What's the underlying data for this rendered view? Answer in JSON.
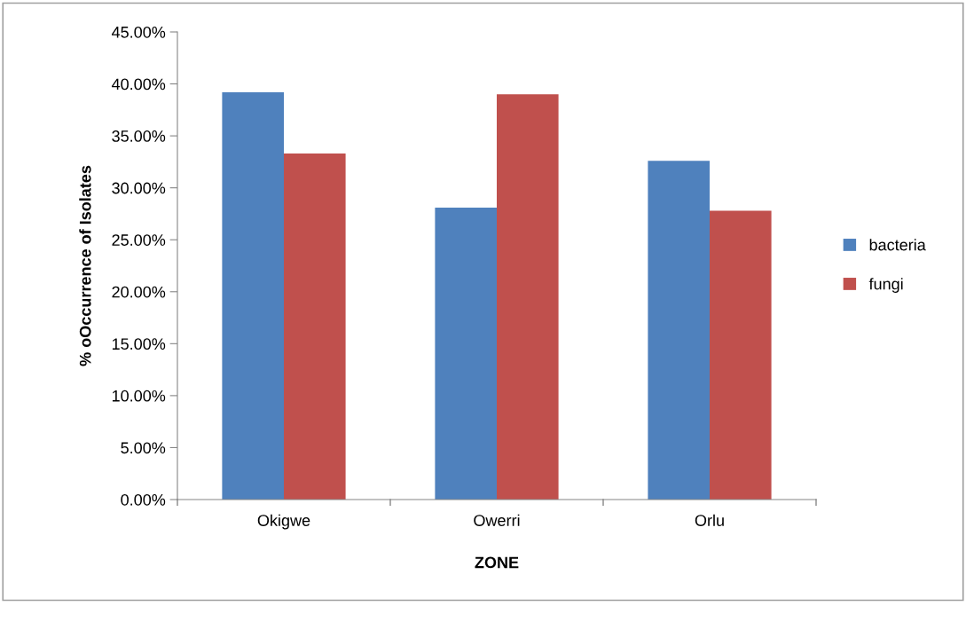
{
  "chart_data": {
    "type": "bar",
    "xlabel": "ZONE",
    "ylabel": "% oOccurrence of Isolates",
    "categories": [
      "Okigwe",
      "Owerri",
      "Orlu"
    ],
    "series": [
      {
        "name": "bacteria",
        "color": "#4f81bd",
        "values": [
          39.2,
          28.1,
          32.6
        ]
      },
      {
        "name": "fungi",
        "color": "#c0504d",
        "values": [
          33.3,
          39.0,
          27.8
        ]
      }
    ],
    "ylim": [
      0,
      45
    ],
    "yticks": [
      {
        "value": 0,
        "label": "0.00%"
      },
      {
        "value": 5,
        "label": "5.00%"
      },
      {
        "value": 10,
        "label": "10.00%"
      },
      {
        "value": 15,
        "label": "15.00%"
      },
      {
        "value": 20,
        "label": "20.00%"
      },
      {
        "value": 25,
        "label": "25.00%"
      },
      {
        "value": 30,
        "label": "30.00%"
      },
      {
        "value": 35,
        "label": "35.00%"
      },
      {
        "value": 40,
        "label": "40.00%"
      },
      {
        "value": 45,
        "label": "45.00%"
      }
    ],
    "grid": false,
    "legend": "right"
  }
}
